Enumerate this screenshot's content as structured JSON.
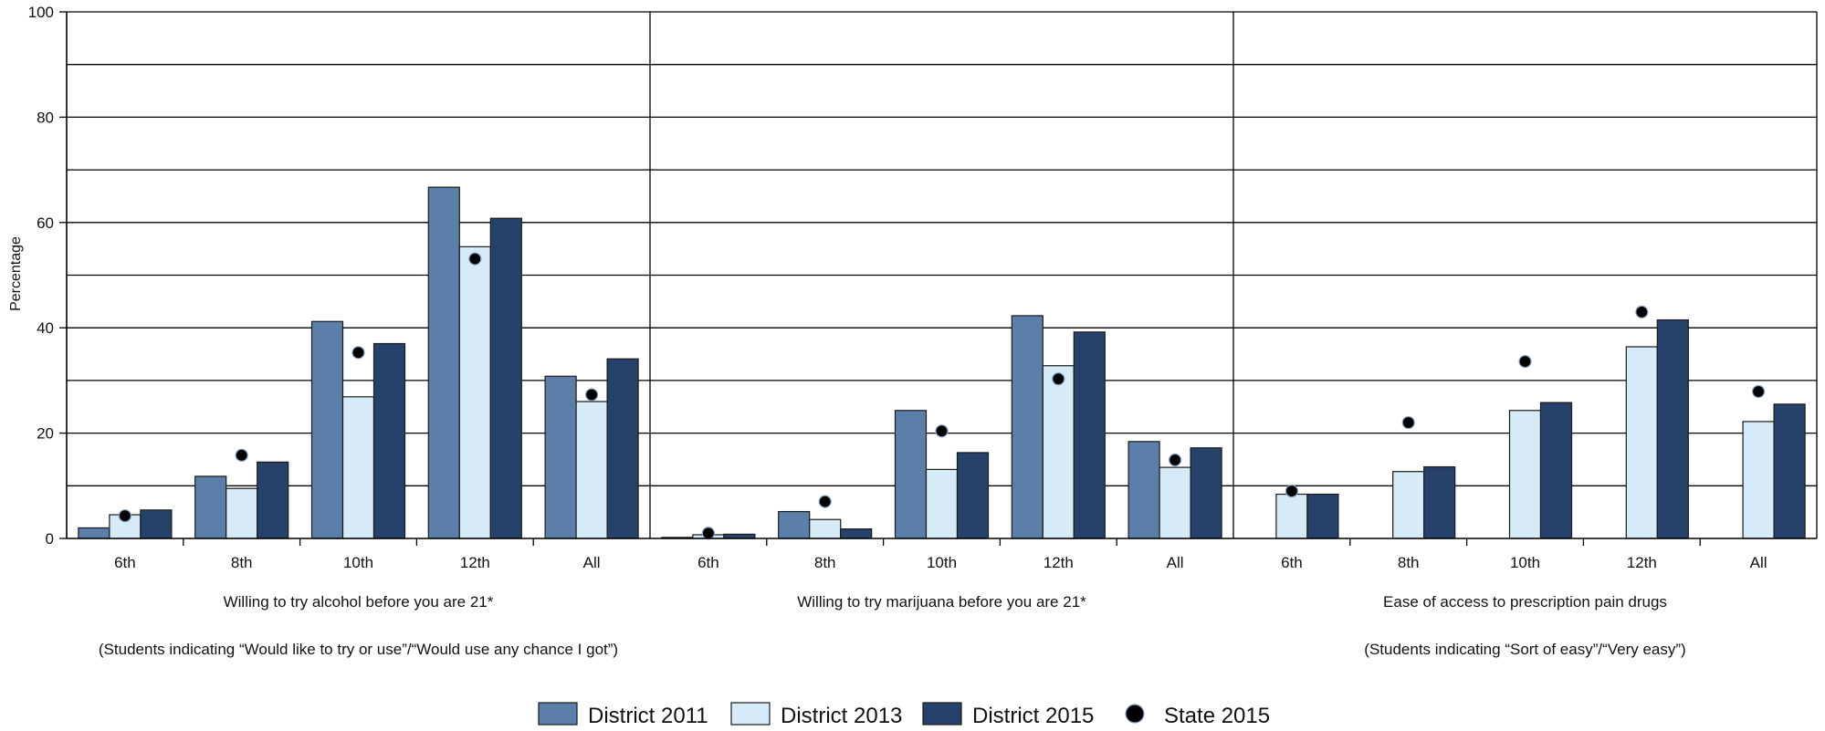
{
  "chart_data": {
    "type": "bar",
    "ylabel": "Percentage",
    "ylim": [
      0,
      100
    ],
    "yticks": [
      0,
      20,
      40,
      60,
      80,
      100
    ],
    "grid": true,
    "legend_position": "bottom",
    "categories": [
      "6th",
      "8th",
      "10th",
      "12th",
      "All"
    ],
    "series": [
      {
        "name": "District 2011",
        "color": "#5b7fa8"
      },
      {
        "name": "District 2013",
        "color": "#d6eaf8"
      },
      {
        "name": "District 2015",
        "color": "#26426b"
      }
    ],
    "marker_series": {
      "name": "State 2015",
      "color": "#000000"
    },
    "panels": [
      {
        "title": "Willing to try alcohol before you are 21*",
        "subtitle": "(Students indicating “Would like to try or use”/“Would use any chance I got”)",
        "district_2011": [
          2.0,
          11.8,
          41.2,
          66.7,
          30.8
        ],
        "district_2013": [
          4.5,
          9.5,
          26.9,
          55.4,
          26.0
        ],
        "district_2015": [
          5.4,
          14.5,
          37.0,
          60.8,
          34.1
        ],
        "state_2015": [
          4.3,
          15.8,
          35.3,
          53.1,
          27.3
        ]
      },
      {
        "title": "Willing to try marijuana before you are 21*",
        "subtitle": "",
        "district_2011": [
          0.2,
          5.1,
          24.3,
          42.3,
          18.4
        ],
        "district_2013": [
          0.7,
          3.6,
          13.1,
          32.8,
          13.5
        ],
        "district_2015": [
          0.8,
          1.8,
          16.3,
          39.2,
          17.2
        ],
        "state_2015": [
          1.0,
          7.0,
          20.4,
          30.3,
          14.9
        ]
      },
      {
        "title": "Ease of access to prescription pain drugs",
        "subtitle": "(Students indicating “Sort of easy”/“Very easy”)",
        "district_2011": [
          null,
          null,
          null,
          null,
          null
        ],
        "district_2013": [
          8.4,
          12.7,
          24.3,
          36.4,
          22.2
        ],
        "district_2015": [
          8.4,
          13.6,
          25.8,
          41.5,
          25.5
        ],
        "state_2015": [
          9.0,
          22.0,
          33.6,
          43.0,
          27.9
        ]
      }
    ]
  }
}
